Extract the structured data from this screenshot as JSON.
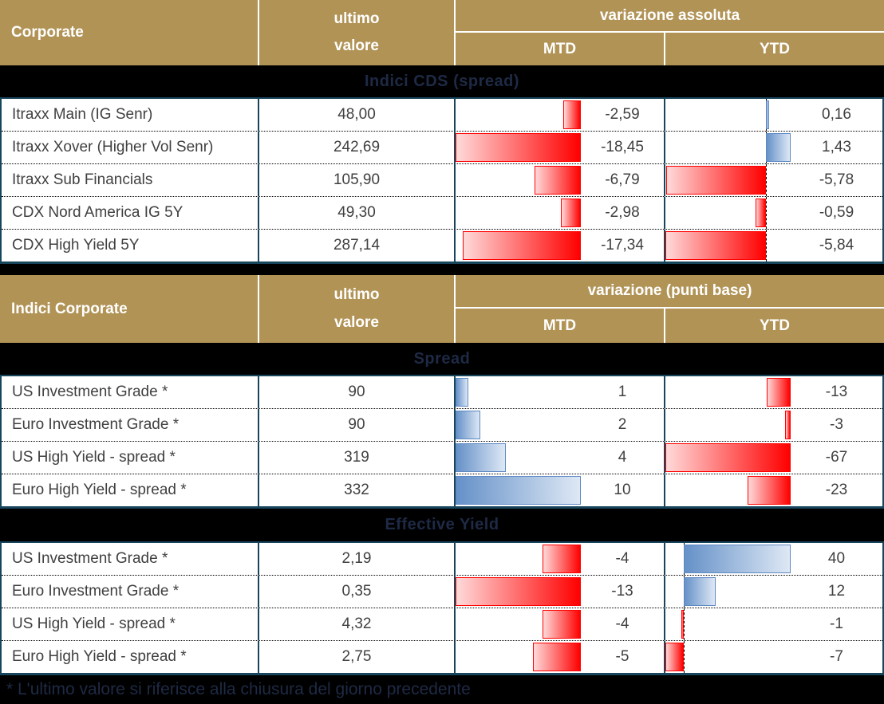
{
  "footnote": "* L'ultimo valore si riferisce alla chiusura del giorno precedente",
  "colors": {
    "page_bg": "#000000",
    "header_bg": "#B19356",
    "header_text": "#FFFFFF",
    "band_text": "#1E2A45",
    "table_border": "#17455C",
    "cell_text": "#404040",
    "negative_bar_solid": "#FF0000",
    "negative_bar_fade": "#FFD9D9",
    "positive_bar_solid": "#6591C8",
    "positive_bar_fade": "#DEE8F5",
    "positive_bar_border": "#5D89C4"
  },
  "chart_data": [
    {
      "type": "table",
      "title": "Corporate",
      "header": {
        "title": "Corporate",
        "value_line1": "ultimo",
        "value_line2": "valore",
        "variation_label": "variazione assoluta",
        "mtd_label": "MTD",
        "ytd_label": "YTD"
      },
      "sections": [
        {
          "band": "Indici CDS (spread)",
          "rows": [
            {
              "label": "Itraxx Main (IG Senr)",
              "value": "48,00",
              "mtd": -2.59,
              "mtd_text": "-2,59",
              "ytd": 0.16,
              "ytd_text": "0,16"
            },
            {
              "label": "Itraxx Xover (Higher Vol Senr)",
              "value": "242,69",
              "mtd": -18.45,
              "mtd_text": "-18,45",
              "ytd": 1.43,
              "ytd_text": "1,43"
            },
            {
              "label": "Itraxx Sub Financials",
              "value": "105,90",
              "mtd": -6.79,
              "mtd_text": "-6,79",
              "ytd": -5.78,
              "ytd_text": "-5,78"
            },
            {
              "label": "CDX Nord America IG 5Y",
              "value": "49,30",
              "mtd": -2.98,
              "mtd_text": "-2,98",
              "ytd": -0.59,
              "ytd_text": "-0,59"
            },
            {
              "label": "CDX High Yield 5Y",
              "value": "287,14",
              "mtd": -17.34,
              "mtd_text": "-17,34",
              "ytd": -5.84,
              "ytd_text": "-5,84"
            }
          ]
        }
      ]
    },
    {
      "type": "table",
      "title": "Indici Corporate",
      "header": {
        "title": "Indici Corporate",
        "value_line1": "ultimo",
        "value_line2": "valore",
        "variation_label": "variazione (punti base)",
        "mtd_label": "MTD",
        "ytd_label": "YTD"
      },
      "sections": [
        {
          "band": "Spread",
          "rows": [
            {
              "label": "US Investment Grade *",
              "value": "90",
              "mtd": 1,
              "mtd_text": "1",
              "ytd": -13,
              "ytd_text": "-13"
            },
            {
              "label": "Euro Investment Grade *",
              "value": "90",
              "mtd": 2,
              "mtd_text": "2",
              "ytd": -3,
              "ytd_text": "-3"
            },
            {
              "label": "US High Yield  - spread *",
              "value": "319",
              "mtd": 4,
              "mtd_text": "4",
              "ytd": -67,
              "ytd_text": "-67"
            },
            {
              "label": "Euro High Yield  - spread *",
              "value": "332",
              "mtd": 10,
              "mtd_text": "10",
              "ytd": -23,
              "ytd_text": "-23"
            }
          ]
        },
        {
          "band": "Effective Yield",
          "rows": [
            {
              "label": "US Investment Grade *",
              "value": "2,19",
              "mtd": -4,
              "mtd_text": "-4",
              "ytd": 40,
              "ytd_text": "40"
            },
            {
              "label": "Euro Investment Grade *",
              "value": "0,35",
              "mtd": -13,
              "mtd_text": "-13",
              "ytd": 12,
              "ytd_text": "12"
            },
            {
              "label": "US High Yield  - spread *",
              "value": "4,32",
              "mtd": -4,
              "mtd_text": "-4",
              "ytd": -1,
              "ytd_text": "-1"
            },
            {
              "label": "Euro High Yield  - spread *",
              "value": "2,75",
              "mtd": -5,
              "mtd_text": "-5",
              "ytd": -7,
              "ytd_text": "-7"
            }
          ]
        }
      ]
    }
  ]
}
